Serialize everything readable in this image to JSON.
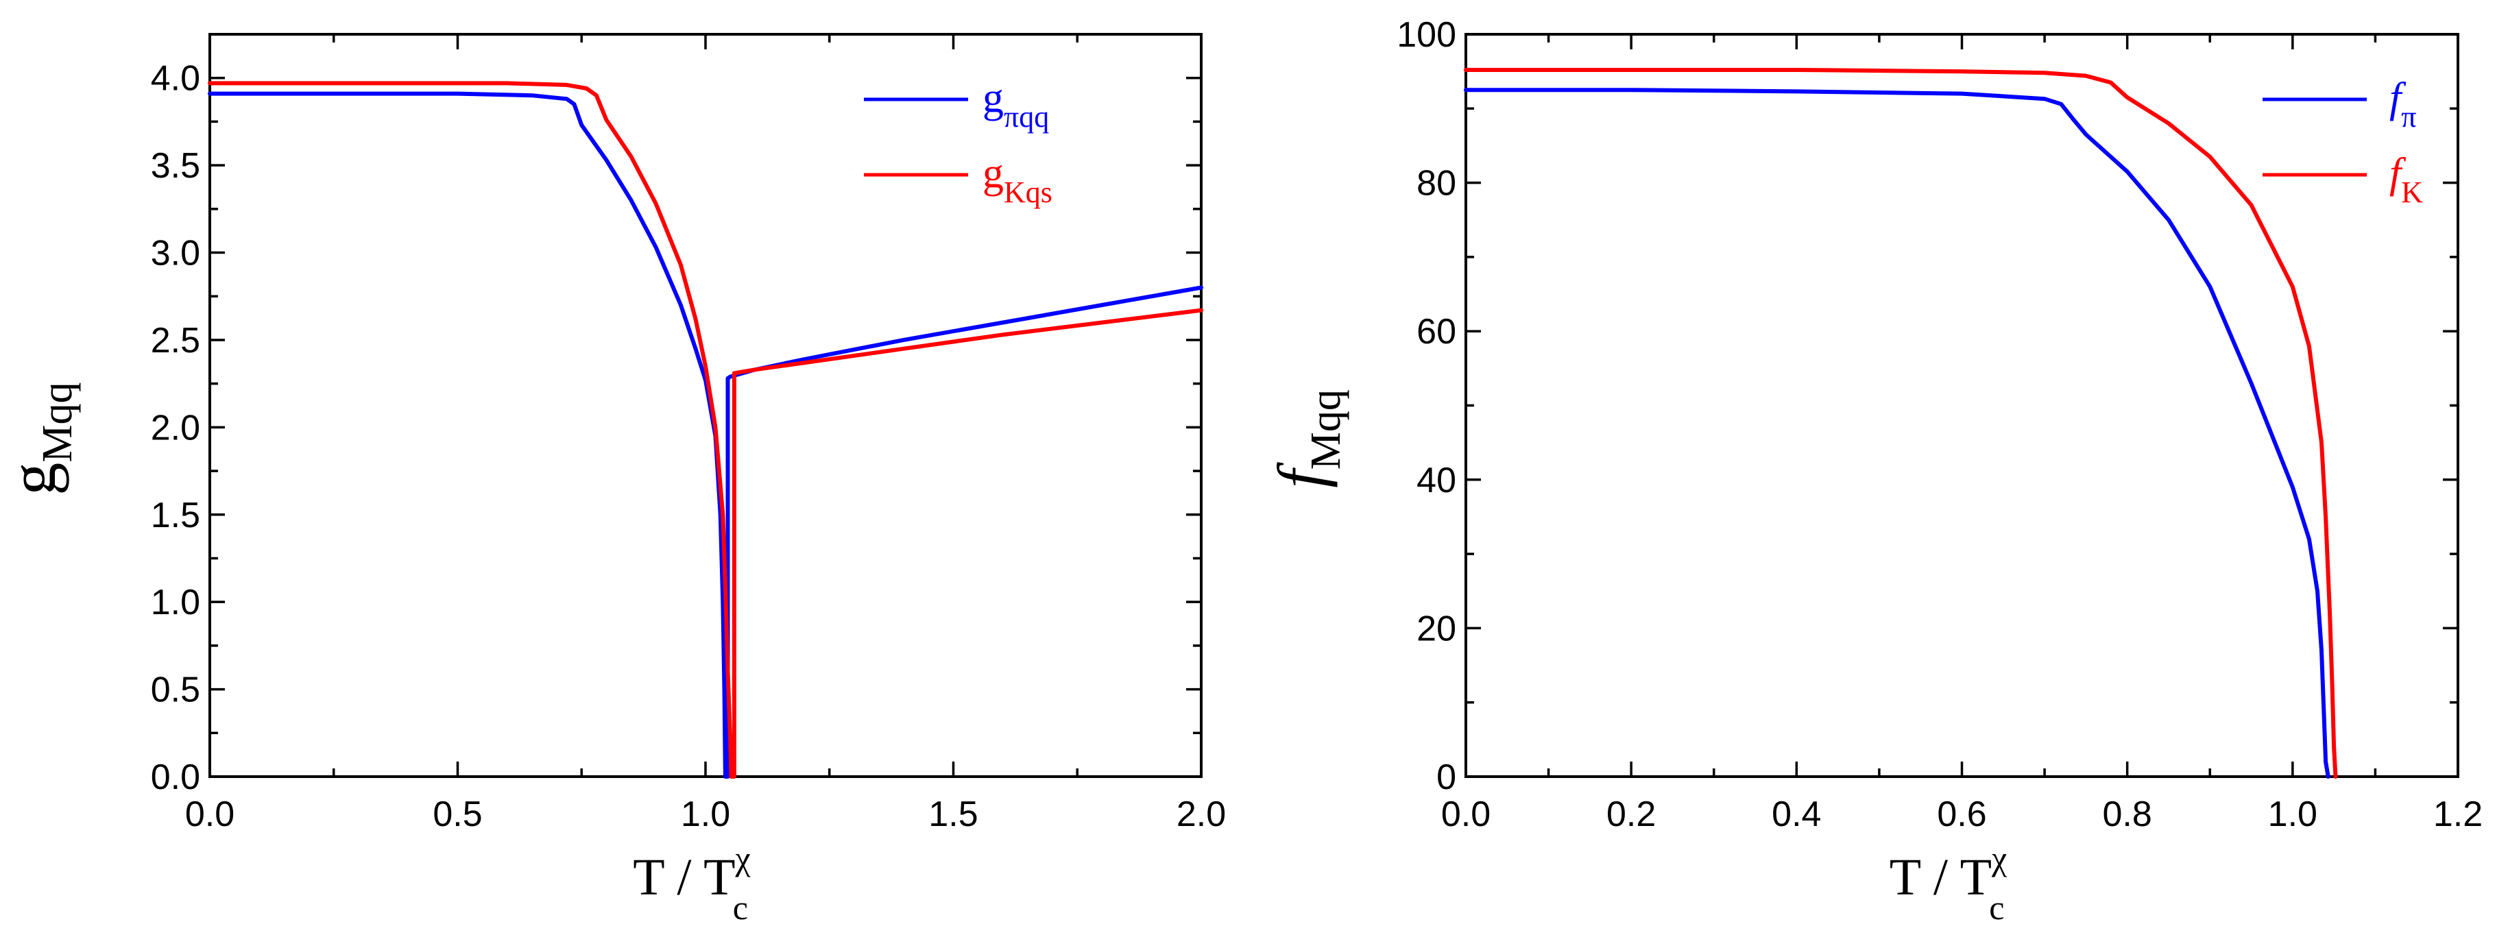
{
  "chart_data": [
    {
      "type": "line",
      "title": "",
      "xlabel": "T / T",
      "xlabel_sup": "χ",
      "xlabel_sub": "c",
      "ylabel": "g",
      "ylabel_sub": "Mqq",
      "xlim": [
        0.0,
        2.0
      ],
      "ylim": [
        0.0,
        4.25
      ],
      "xticks": [
        0.0,
        0.5,
        1.0,
        1.5,
        2.0
      ],
      "xtick_labels": [
        "0.0",
        "0.5",
        "1.0",
        "1.5",
        "2.0"
      ],
      "yticks": [
        0.0,
        0.5,
        1.0,
        1.5,
        2.0,
        2.5,
        3.0,
        3.5,
        4.0
      ],
      "ytick_labels": [
        "0.0",
        "0.5",
        "1.0",
        "1.5",
        "2.0",
        "2.5",
        "3.0",
        "3.5",
        "4.0"
      ],
      "legend_position": "top-right",
      "series": [
        {
          "name": "g",
          "name_sub": "πqq",
          "color": "#0000ff",
          "x": [
            0.0,
            0.3,
            0.5,
            0.65,
            0.72,
            0.735,
            0.75,
            0.8,
            0.85,
            0.9,
            0.95,
            0.98,
            1.0,
            1.02,
            1.03,
            1.035,
            1.038,
            1.04,
            1.04,
            1.045,
            1.045,
            1.05,
            1.1,
            1.2,
            1.4,
            1.6,
            1.8,
            2.0
          ],
          "y": [
            3.91,
            3.91,
            3.91,
            3.9,
            3.88,
            3.85,
            3.73,
            3.53,
            3.3,
            3.03,
            2.7,
            2.45,
            2.27,
            1.95,
            1.5,
            1.0,
            0.5,
            0.0,
            0.0,
            0.0,
            2.28,
            2.29,
            2.33,
            2.39,
            2.5,
            2.6,
            2.7,
            2.8
          ]
        },
        {
          "name": "g",
          "name_sub": "Kqs",
          "color": "#ff0000",
          "x": [
            0.0,
            0.3,
            0.6,
            0.72,
            0.76,
            0.78,
            0.8,
            0.85,
            0.9,
            0.95,
            0.98,
            1.0,
            1.02,
            1.035,
            1.04,
            1.045,
            1.05,
            1.052,
            1.052,
            1.058,
            1.058,
            1.1,
            1.2,
            1.4,
            1.6,
            1.8,
            2.0
          ],
          "y": [
            3.97,
            3.97,
            3.97,
            3.96,
            3.94,
            3.9,
            3.76,
            3.55,
            3.28,
            2.93,
            2.62,
            2.35,
            2.0,
            1.5,
            1.1,
            0.6,
            0.2,
            0.0,
            0.0,
            0.0,
            2.31,
            2.33,
            2.37,
            2.45,
            2.53,
            2.6,
            2.67
          ]
        }
      ]
    },
    {
      "type": "line",
      "title": "",
      "xlabel": "T / T",
      "xlabel_sup": "χ",
      "xlabel_sub": "c",
      "ylabel": "f",
      "ylabel_sub": "Mqq",
      "xlim": [
        0.0,
        1.2
      ],
      "ylim": [
        0,
        100
      ],
      "xticks": [
        0.0,
        0.2,
        0.4,
        0.6,
        0.8,
        1.0,
        1.2
      ],
      "xtick_labels": [
        "0.0",
        "0.2",
        "0.4",
        "0.6",
        "0.8",
        "1.0",
        "1.2"
      ],
      "yticks": [
        0,
        20,
        40,
        60,
        80,
        100
      ],
      "ytick_labels": [
        "0",
        "20",
        "40",
        "60",
        "80",
        "100"
      ],
      "legend_position": "top-right",
      "series": [
        {
          "name": "f",
          "name_sub": "π",
          "color": "#0000ff",
          "x": [
            0.0,
            0.2,
            0.4,
            0.6,
            0.7,
            0.72,
            0.735,
            0.75,
            0.8,
            0.85,
            0.9,
            0.95,
            1.0,
            1.02,
            1.03,
            1.035,
            1.038,
            1.04,
            1.043
          ],
          "y": [
            92.5,
            92.5,
            92.3,
            92.0,
            91.3,
            90.6,
            88.5,
            86.5,
            81.5,
            75.0,
            66.0,
            53.0,
            39.0,
            32.0,
            25.0,
            17.0,
            8.0,
            2.0,
            0.0
          ]
        },
        {
          "name": "f",
          "name_sub": "K",
          "color": "#ff0000",
          "x": [
            0.0,
            0.2,
            0.4,
            0.6,
            0.7,
            0.75,
            0.78,
            0.8,
            0.85,
            0.9,
            0.95,
            1.0,
            1.02,
            1.035,
            1.04,
            1.045,
            1.048,
            1.05,
            1.052
          ],
          "y": [
            95.2,
            95.2,
            95.2,
            95.0,
            94.8,
            94.4,
            93.5,
            91.5,
            88.0,
            83.5,
            77.0,
            66.0,
            58.0,
            45.0,
            35.0,
            22.0,
            12.0,
            4.0,
            0.0
          ]
        }
      ]
    }
  ]
}
